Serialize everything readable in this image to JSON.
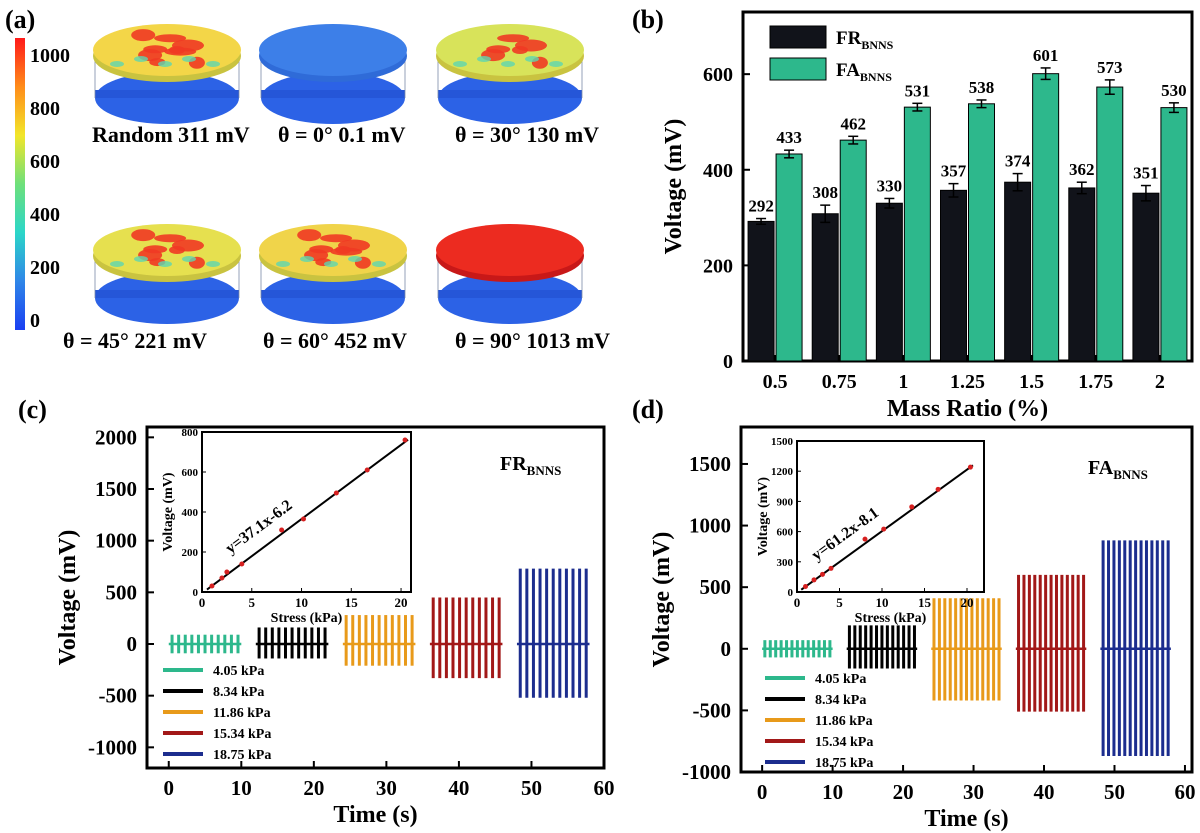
{
  "panel_labels": [
    "(a)",
    "(b)",
    "(c)",
    "(d)"
  ],
  "panel_a": {
    "colorbar_ticks": [
      "1000",
      "800",
      "600",
      "400",
      "200",
      "0"
    ],
    "colorbar_colors": [
      "#ff1a1a",
      "#ff8c1a",
      "#f2e62a",
      "#6ee07a",
      "#2bd6c8",
      "#2f86e8",
      "#1a3ff2"
    ],
    "discs": [
      {
        "label": "Random 311 mV",
        "top_color": "#f3d648",
        "hot": 0.45
      },
      {
        "label": "θ = 0°  0.1 mV",
        "top_color": "#3d7fe8",
        "hot": 0.0
      },
      {
        "label": "θ = 30° 130 mV",
        "top_color": "#d8e35a",
        "hot": 0.2
      },
      {
        "label": "θ = 45° 221 mV",
        "top_color": "#e6e04f",
        "hot": 0.35
      },
      {
        "label": "θ = 60° 452 mV",
        "top_color": "#f0d44a",
        "hot": 0.5
      },
      {
        "label": "θ = 90° 1013 mV",
        "top_color": "#ec2b20",
        "hot": 1.0
      }
    ],
    "bottom_color": "#2c62e6"
  },
  "chart_data": [
    {
      "panel": "b",
      "type": "bar",
      "xlabel": "Mass Ratio (%)",
      "ylabel": "Voltage (mV)",
      "ylim": [
        0,
        730
      ],
      "yticks": [
        0,
        200,
        400,
        600
      ],
      "categories": [
        "0.5",
        "0.75",
        "1",
        "1.25",
        "1.5",
        "1.75",
        "2"
      ],
      "legend": [
        {
          "base": "FR",
          "sub": "BNNS",
          "color": "#11131a"
        },
        {
          "base": "FA",
          "sub": "BNNS",
          "color": "#2db88c"
        }
      ],
      "series": [
        {
          "name": "FRBNNS",
          "color": "#11131a",
          "values": [
            292,
            308,
            330,
            357,
            374,
            362,
            351
          ],
          "errors": [
            6,
            18,
            10,
            14,
            18,
            12,
            16
          ],
          "labels": [
            "292",
            "308",
            "330",
            "357",
            "374",
            "362",
            "351"
          ]
        },
        {
          "name": "FABNNS",
          "color": "#2db88c",
          "values": [
            433,
            462,
            531,
            538,
            601,
            573,
            530
          ],
          "errors": [
            8,
            8,
            8,
            8,
            12,
            15,
            10
          ],
          "labels": [
            "433",
            "462",
            "531",
            "538",
            "601",
            "573",
            "530"
          ]
        }
      ]
    },
    {
      "panel": "c",
      "type": "line",
      "title": {
        "base": "FR",
        "sub": "BNNS"
      },
      "xlabel": "Time (s)",
      "ylabel": "Voltage (mV)",
      "xlim": [
        -3,
        60
      ],
      "ylim": [
        -1200,
        2100
      ],
      "xticks": [
        0,
        10,
        20,
        30,
        40,
        50,
        60
      ],
      "yticks": [
        -1000,
        -500,
        0,
        500,
        1000,
        1500,
        2000
      ],
      "series": [
        {
          "name": "4.05 kPa",
          "color": "#2db88c",
          "t_start": 0,
          "t_end": 10,
          "pulses": 11,
          "pos_peak": 90,
          "neg_peak": -90
        },
        {
          "name": "8.34 kPa",
          "color": "#000000",
          "t_start": 12,
          "t_end": 22,
          "pulses": 11,
          "pos_peak": 160,
          "neg_peak": -140
        },
        {
          "name": "11.86 kPa",
          "color": "#e89a1a",
          "t_start": 24,
          "t_end": 34,
          "pulses": 11,
          "pos_peak": 280,
          "neg_peak": -210
        },
        {
          "name": "15.34 kPa",
          "color": "#a21818",
          "t_start": 36,
          "t_end": 46,
          "pulses": 11,
          "pos_peak": 450,
          "neg_peak": -330
        },
        {
          "name": "18.75 kPa",
          "color": "#1c2d8e",
          "t_start": 48,
          "t_end": 58,
          "pulses": 11,
          "pos_peak": 730,
          "neg_peak": -520
        }
      ],
      "inset": {
        "xlabel": "Stress (kPa)",
        "ylabel": "Voltage (mV)",
        "xlim": [
          0,
          21
        ],
        "ylim": [
          0,
          800
        ],
        "xticks": [
          0,
          5,
          10,
          15,
          20
        ],
        "yticks": [
          0,
          200,
          400,
          600,
          800
        ],
        "fit_label": "y=37.1x-6.2",
        "slope": 37.1,
        "intercept": -6.2,
        "points": [
          [
            1,
            30
          ],
          [
            2,
            70
          ],
          [
            2.5,
            100
          ],
          [
            4,
            140
          ],
          [
            8,
            310
          ],
          [
            10.2,
            365
          ],
          [
            13.5,
            495
          ],
          [
            16.6,
            610
          ],
          [
            20.4,
            760
          ]
        ]
      }
    },
    {
      "panel": "d",
      "type": "line",
      "title": {
        "base": "FA",
        "sub": "BNNS"
      },
      "xlabel": "Time (s)",
      "ylabel": "Voltage (mV)",
      "xlim": [
        -3,
        61
      ],
      "ylim": [
        -1000,
        1800
      ],
      "xticks": [
        0,
        10,
        20,
        30,
        40,
        50,
        60
      ],
      "yticks": [
        -1000,
        -500,
        0,
        500,
        1000,
        1500
      ],
      "series": [
        {
          "name": "4.05 kPa",
          "color": "#2db88c",
          "t_start": 0,
          "t_end": 10,
          "pulses": 13,
          "pos_peak": 70,
          "neg_peak": -70
        },
        {
          "name": "8.34 kPa",
          "color": "#000000",
          "t_start": 12,
          "t_end": 22,
          "pulses": 13,
          "pos_peak": 190,
          "neg_peak": -160
        },
        {
          "name": "11.86 kPa",
          "color": "#e89a1a",
          "t_start": 24,
          "t_end": 34,
          "pulses": 13,
          "pos_peak": 410,
          "neg_peak": -420
        },
        {
          "name": "15.34 kPa",
          "color": "#a21818",
          "t_start": 36,
          "t_end": 46,
          "pulses": 13,
          "pos_peak": 600,
          "neg_peak": -510
        },
        {
          "name": "18.75 kPa",
          "color": "#1c2d8e",
          "t_start": 48,
          "t_end": 58,
          "pulses": 13,
          "pos_peak": 880,
          "neg_peak": -870
        }
      ],
      "inset": {
        "xlabel": "Stress (kPa)",
        "ylabel": "Voltage (mV)",
        "xlim": [
          0,
          22
        ],
        "ylim": [
          0,
          1500
        ],
        "xticks": [
          0,
          5,
          10,
          15,
          20
        ],
        "yticks": [
          0,
          300,
          600,
          900,
          1200,
          1500
        ],
        "fit_label": "y=61.2x-8.1",
        "slope": 61.2,
        "intercept": -8.1,
        "points": [
          [
            1,
            55
          ],
          [
            2,
            120
          ],
          [
            3,
            175
          ],
          [
            4,
            235
          ],
          [
            8,
            525
          ],
          [
            10.2,
            625
          ],
          [
            13.5,
            845
          ],
          [
            16.6,
            1020
          ],
          [
            20.4,
            1240
          ]
        ]
      }
    }
  ]
}
